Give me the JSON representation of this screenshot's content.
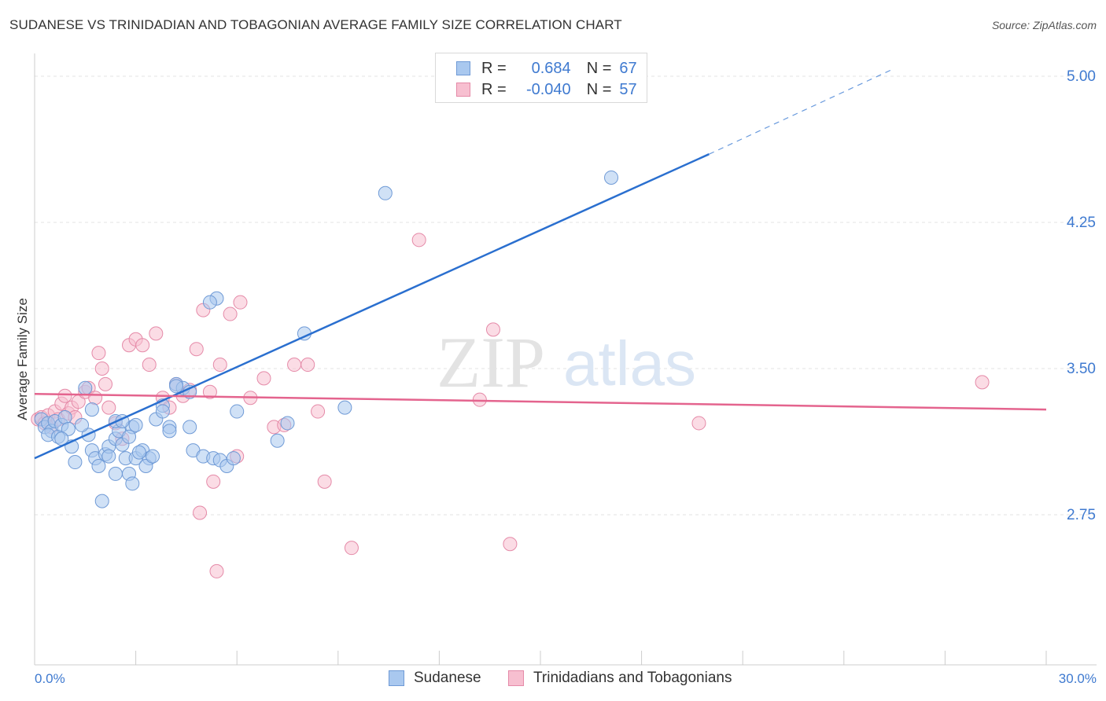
{
  "title": "SUDANESE VS TRINIDADIAN AND TOBAGONIAN AVERAGE FAMILY SIZE CORRELATION CHART",
  "source": "Source: ZipAtlas.com",
  "watermark": {
    "zip": "ZIP",
    "atlas": "atlas"
  },
  "colors": {
    "blue_fill": "#a9c8ef",
    "blue_stroke": "#6f9ad6",
    "blue_line": "#2a6fcf",
    "pink_fill": "#f7bfd0",
    "pink_stroke": "#e58aa8",
    "pink_line": "#e4648e",
    "axis_label": "#3f7ad0",
    "grid": "#e3e3e3"
  },
  "legend_top": {
    "rows": [
      {
        "r_label": "R =",
        "r_value": "0.684",
        "n_label": "N =",
        "n_value": "67",
        "color": "blue"
      },
      {
        "r_label": "R =",
        "r_value": "-0.040",
        "n_label": "N =",
        "n_value": "57",
        "color": "pink"
      }
    ]
  },
  "legend_bottom": [
    {
      "label": "Sudanese",
      "color": "blue"
    },
    {
      "label": "Trinidadians and Tobagonians",
      "color": "pink"
    }
  ],
  "chart_data": {
    "type": "scatter",
    "title": "SUDANESE VS TRINIDADIAN AND TOBAGONIAN AVERAGE FAMILY SIZE CORRELATION CHART",
    "xlabel": "",
    "ylabel": "Average Family Size",
    "xlim": [
      0,
      30
    ],
    "ylim": [
      2.0,
      5.08
    ],
    "x_tick_labels": [
      "0.0%",
      "30.0%"
    ],
    "y_ticks": [
      2.75,
      3.5,
      4.25,
      5.0
    ],
    "y_tick_labels": [
      "2.75",
      "3.50",
      "4.25",
      "5.00"
    ],
    "grid": true,
    "series": [
      {
        "name": "Sudanese",
        "color": "blue",
        "r": 0.684,
        "n": 67,
        "trend": {
          "x": [
            0,
            20
          ],
          "y": [
            3.04,
            4.6
          ],
          "dashed_to": [
            25.5,
            5.04
          ]
        },
        "points": [
          [
            0.2,
            3.24
          ],
          [
            0.3,
            3.2
          ],
          [
            0.4,
            3.22
          ],
          [
            0.5,
            3.18
          ],
          [
            0.6,
            3.23
          ],
          [
            0.4,
            3.16
          ],
          [
            0.7,
            3.15
          ],
          [
            0.8,
            3.21
          ],
          [
            0.9,
            3.25
          ],
          [
            1.0,
            3.19
          ],
          [
            1.1,
            3.1
          ],
          [
            1.2,
            3.02
          ],
          [
            0.8,
            3.14
          ],
          [
            1.5,
            3.4
          ],
          [
            1.6,
            3.16
          ],
          [
            1.7,
            3.08
          ],
          [
            1.8,
            3.04
          ],
          [
            1.9,
            3.0
          ],
          [
            2.0,
            2.82
          ],
          [
            2.1,
            3.06
          ],
          [
            2.2,
            3.1
          ],
          [
            2.4,
            3.14
          ],
          [
            2.5,
            3.18
          ],
          [
            2.6,
            3.11
          ],
          [
            2.7,
            3.04
          ],
          [
            2.8,
            2.96
          ],
          [
            2.9,
            3.2
          ],
          [
            3.0,
            3.04
          ],
          [
            1.4,
            3.21
          ],
          [
            1.7,
            3.29
          ],
          [
            2.4,
            3.23
          ],
          [
            3.2,
            3.08
          ],
          [
            3.4,
            3.04
          ],
          [
            3.6,
            3.24
          ],
          [
            3.8,
            3.31
          ],
          [
            4.0,
            3.2
          ],
          [
            4.2,
            3.42
          ],
          [
            4.4,
            3.4
          ],
          [
            4.6,
            3.38
          ],
          [
            4.7,
            3.08
          ],
          [
            5.0,
            3.05
          ],
          [
            5.3,
            3.04
          ],
          [
            3.1,
            3.07
          ],
          [
            2.9,
            2.91
          ],
          [
            2.4,
            2.96
          ],
          [
            3.3,
            3.0
          ],
          [
            4.6,
            3.2
          ],
          [
            3.5,
            3.05
          ],
          [
            2.6,
            3.23
          ],
          [
            2.8,
            3.15
          ],
          [
            3.8,
            3.28
          ],
          [
            4.2,
            3.41
          ],
          [
            4.0,
            3.18
          ],
          [
            3.0,
            3.21
          ],
          [
            2.2,
            3.05
          ],
          [
            5.5,
            3.03
          ],
          [
            5.7,
            3.0
          ],
          [
            5.9,
            3.04
          ],
          [
            6.0,
            3.28
          ],
          [
            7.2,
            3.13
          ],
          [
            7.5,
            3.22
          ],
          [
            8.0,
            3.68
          ],
          [
            9.2,
            3.3
          ],
          [
            5.4,
            3.86
          ],
          [
            5.2,
            3.84
          ],
          [
            10.4,
            4.4
          ],
          [
            17.1,
            4.48
          ]
        ]
      },
      {
        "name": "Trinidadians and Tobagonians",
        "color": "pink",
        "r": -0.04,
        "n": 57,
        "trend": {
          "x": [
            0,
            30
          ],
          "y": [
            3.37,
            3.29
          ]
        },
        "points": [
          [
            0.1,
            3.24
          ],
          [
            0.2,
            3.25
          ],
          [
            0.3,
            3.22
          ],
          [
            0.4,
            3.26
          ],
          [
            0.5,
            3.2
          ],
          [
            0.6,
            3.28
          ],
          [
            0.7,
            3.24
          ],
          [
            0.8,
            3.32
          ],
          [
            0.9,
            3.36
          ],
          [
            1.0,
            3.27
          ],
          [
            1.1,
            3.3
          ],
          [
            1.2,
            3.25
          ],
          [
            1.3,
            3.33
          ],
          [
            1.5,
            3.38
          ],
          [
            1.6,
            3.4
          ],
          [
            1.8,
            3.35
          ],
          [
            1.9,
            3.58
          ],
          [
            2.0,
            3.5
          ],
          [
            2.1,
            3.42
          ],
          [
            2.2,
            3.3
          ],
          [
            2.4,
            3.22
          ],
          [
            2.6,
            3.14
          ],
          [
            2.8,
            3.62
          ],
          [
            3.0,
            3.65
          ],
          [
            3.2,
            3.62
          ],
          [
            3.4,
            3.52
          ],
          [
            3.6,
            3.68
          ],
          [
            3.8,
            3.35
          ],
          [
            4.0,
            3.3
          ],
          [
            4.2,
            3.42
          ],
          [
            4.4,
            3.36
          ],
          [
            4.6,
            3.39
          ],
          [
            4.8,
            3.6
          ],
          [
            5.0,
            3.8
          ],
          [
            5.2,
            3.38
          ],
          [
            5.5,
            3.52
          ],
          [
            5.8,
            3.78
          ],
          [
            6.1,
            3.84
          ],
          [
            6.4,
            3.35
          ],
          [
            6.8,
            3.45
          ],
          [
            7.1,
            3.2
          ],
          [
            7.4,
            3.21
          ],
          [
            7.7,
            3.52
          ],
          [
            8.1,
            3.52
          ],
          [
            8.4,
            3.28
          ],
          [
            5.3,
            2.92
          ],
          [
            6.0,
            3.05
          ],
          [
            8.6,
            2.92
          ],
          [
            4.9,
            2.76
          ],
          [
            5.4,
            2.46
          ],
          [
            9.4,
            2.58
          ],
          [
            13.2,
            3.34
          ],
          [
            13.6,
            3.7
          ],
          [
            11.4,
            4.16
          ],
          [
            19.7,
            3.22
          ],
          [
            28.1,
            3.43
          ],
          [
            14.1,
            2.6
          ]
        ]
      }
    ]
  }
}
